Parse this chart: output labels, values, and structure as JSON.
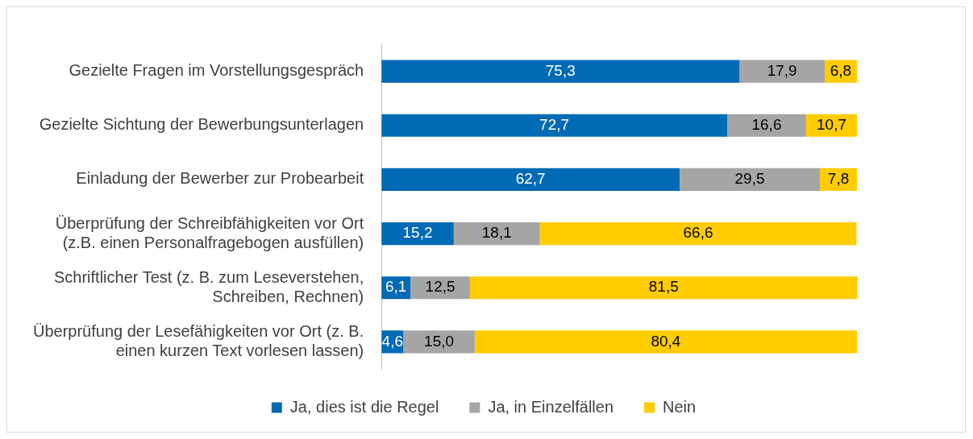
{
  "chart_data": {
    "type": "bar",
    "orientation": "horizontal",
    "stacked": true,
    "categories": [
      "Gezielte Fragen im Vorstellungsgespräch",
      "Gezielte Sichtung der Bewerbungsunterlagen",
      "Einladung der Bewerber zur Probearbeit",
      "Überprüfung der Schreibfähigkeiten vor Ort (z.B. einen Personalfragebogen ausfüllen)",
      "Schriftlicher Test (z. B. zum Leseverstehen, Schreiben, Rechnen)",
      "Überprüfung der Lesefähigkeiten vor Ort (z. B. einen kurzen Text vorlesen lassen)"
    ],
    "series": [
      {
        "name": "Ja, dies ist die Regel",
        "color": "#006ab4",
        "values": [
          75.3,
          72.7,
          62.7,
          15.2,
          6.1,
          4.6
        ],
        "value_labels": [
          "75,3",
          "72,7",
          "62,7",
          "15,2",
          "6,1",
          "4,6"
        ]
      },
      {
        "name": "Ja, in Einzelfällen",
        "color": "#a5a5a5",
        "values": [
          17.9,
          16.6,
          29.5,
          18.1,
          12.5,
          15.0
        ],
        "value_labels": [
          "17,9",
          "16,6",
          "29,5",
          "18,1",
          "12,5",
          "15,0"
        ]
      },
      {
        "name": "Nein",
        "color": "#ffcc00",
        "values": [
          6.8,
          10.7,
          7.8,
          66.6,
          81.5,
          80.4
        ],
        "value_labels": [
          "6,8",
          "10,7",
          "7,8",
          "66,6",
          "81,5",
          "80,4"
        ]
      }
    ],
    "tick_labels": "y",
    "legend": "bottom"
  }
}
